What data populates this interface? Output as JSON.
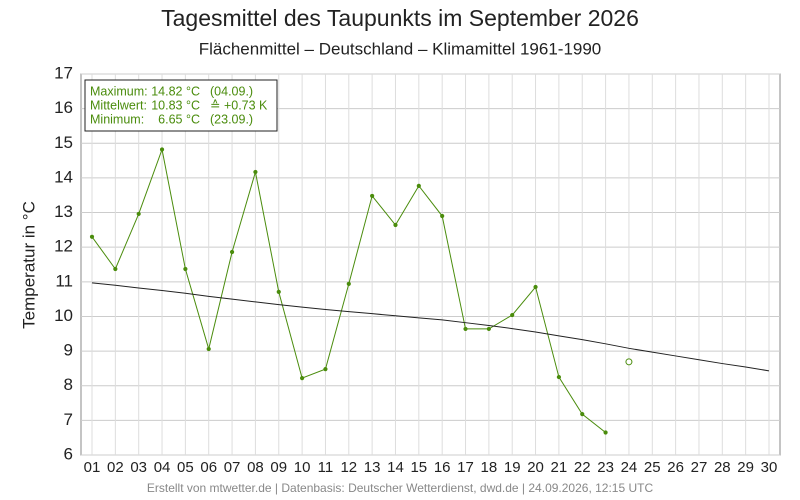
{
  "chart_data": {
    "type": "line",
    "title": "Tagesmittel des Taupunkts im September 2026",
    "subtitle": "Flächenmittel – Deutschland – Klimamittel 1961-1990",
    "y_label": "Temperatur in °C",
    "footer": "Erstellt von mtwetter.de | Datenbasis: Deutscher Wetterdienst, dwd.de | 24.09.2026, 12:15 UTC",
    "categories": [
      "01",
      "02",
      "03",
      "04",
      "05",
      "06",
      "07",
      "08",
      "09",
      "10",
      "11",
      "12",
      "13",
      "14",
      "15",
      "16",
      "17",
      "18",
      "19",
      "20",
      "21",
      "22",
      "23",
      "24",
      "25",
      "26",
      "27",
      "28",
      "29",
      "30"
    ],
    "series": [
      {
        "color": "#4a8c0c",
        "marker": "dot",
        "values": [
          12.3,
          11.37,
          12.96,
          14.82,
          11.37,
          9.06,
          11.86,
          14.17,
          10.71,
          8.22,
          8.48,
          10.94,
          13.48,
          12.64,
          13.77,
          12.9,
          9.64,
          9.64,
          10.04,
          10.85,
          8.25,
          7.18,
          6.65,
          null,
          null,
          null,
          null,
          null,
          null,
          null
        ]
      },
      {
        "color": "#4a8c0c",
        "marker": "open",
        "values": [
          null,
          null,
          null,
          null,
          null,
          null,
          null,
          null,
          null,
          null,
          null,
          null,
          null,
          null,
          null,
          null,
          null,
          null,
          null,
          null,
          null,
          null,
          null,
          8.69,
          null,
          null,
          null,
          null,
          null,
          null
        ]
      },
      {
        "color": "#222222",
        "marker": "none",
        "values": [
          10.97,
          10.9,
          10.82,
          10.75,
          10.67,
          10.58,
          10.5,
          10.42,
          10.34,
          10.27,
          10.2,
          10.14,
          10.08,
          10.02,
          9.96,
          9.9,
          9.82,
          9.74,
          9.65,
          9.55,
          9.44,
          9.33,
          9.21,
          9.08,
          8.97,
          8.86,
          8.75,
          8.64,
          8.54,
          8.43
        ]
      }
    ],
    "stats": [
      [
        "Maximum:",
        "14.82 °C",
        "(04.09.)"
      ],
      [
        "Mittelwert:",
        "10.83 °C",
        "≙ +0.73 K"
      ],
      [
        "Minimum:",
        "6.65 °C",
        "(23.09.)"
      ]
    ],
    "ylim": [
      6,
      17
    ],
    "yticks": [
      6,
      7,
      8,
      9,
      10,
      11,
      12,
      13,
      14,
      15,
      16,
      17
    ],
    "grid": true
  }
}
